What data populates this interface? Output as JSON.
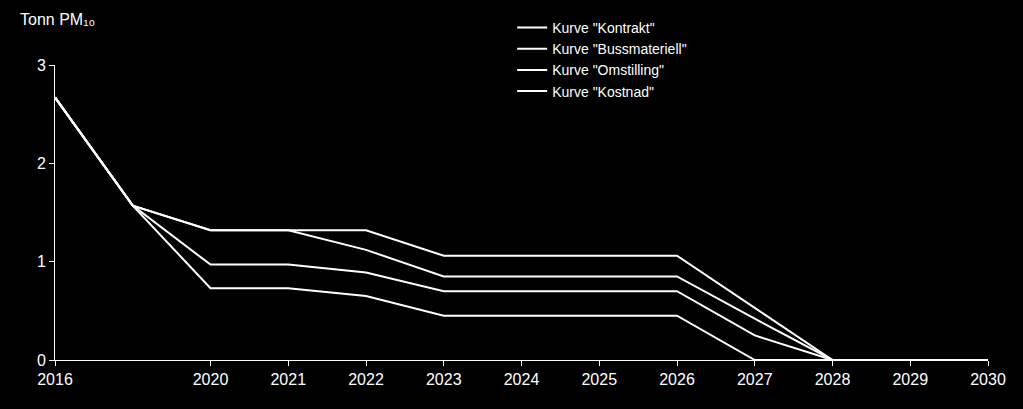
{
  "chart_data": {
    "type": "line",
    "y_label": "Tonn PM₁₀",
    "categories": [
      "2016",
      null,
      "2020",
      "2021",
      "2022",
      "2023",
      "2024",
      "2025",
      "2026",
      "2027",
      "2028",
      "2029",
      "2030"
    ],
    "series": [
      {
        "name": "Kurve \"Kontrakt\"",
        "color": "#ffffff",
        "line_style": "solid",
        "values": [
          2.67,
          1.57,
          1.32,
          1.32,
          1.32,
          1.06,
          1.06,
          1.06,
          1.06,
          0.53,
          0,
          0,
          0
        ]
      },
      {
        "name": "Kurve \"Bussmateriell\"",
        "color": "#ffffff",
        "line_style": "solid",
        "values": [
          2.67,
          1.57,
          1.32,
          1.32,
          1.12,
          0.85,
          0.85,
          0.85,
          0.85,
          0.42,
          0,
          0,
          0
        ]
      },
      {
        "name": "Kurve \"Omstilling\"",
        "color": "#ffffff",
        "line_style": "solid",
        "values": [
          2.67,
          1.57,
          0.97,
          0.97,
          0.89,
          0.7,
          0.7,
          0.7,
          0.7,
          0.25,
          0,
          0,
          0
        ]
      },
      {
        "name": "Kurve \"Kostnad\"",
        "color": "#ffffff",
        "line_style": "solid",
        "values": [
          2.67,
          1.57,
          0.73,
          0.73,
          0.65,
          0.45,
          0.45,
          0.45,
          0.45,
          0,
          0,
          0,
          0
        ]
      }
    ],
    "ylim": [
      0,
      3
    ],
    "yticks": [
      0,
      1,
      2,
      3
    ],
    "grid": false,
    "legend": "top"
  }
}
